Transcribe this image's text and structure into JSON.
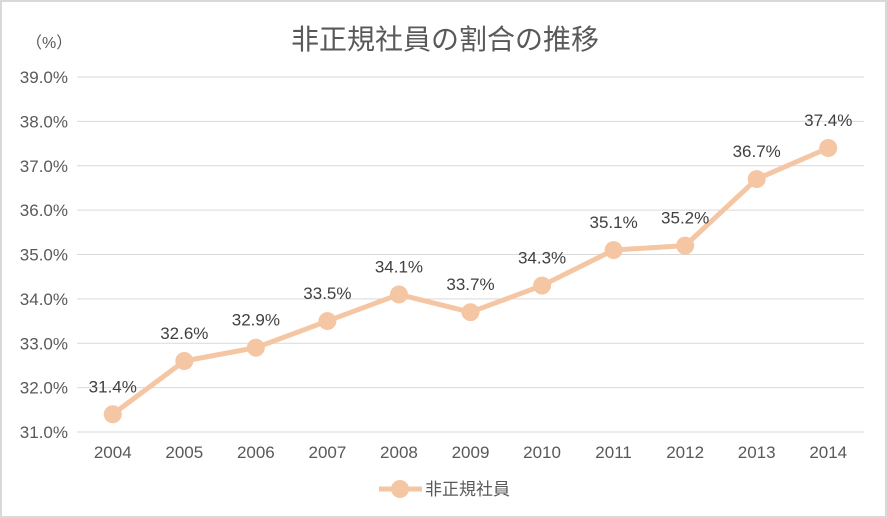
{
  "chart": {
    "title": "非正規社員の割合の推移",
    "unit_label": "（%）",
    "legend_label": "非正規社員"
  },
  "chart_data": {
    "type": "line",
    "title": "非正規社員の割合の推移",
    "unit_label": "（%）",
    "x": [
      "2004",
      "2005",
      "2006",
      "2007",
      "2008",
      "2009",
      "2010",
      "2011",
      "2012",
      "2013",
      "2014"
    ],
    "series": [
      {
        "name": "非正規社員",
        "values": [
          31.4,
          32.6,
          32.9,
          33.5,
          34.1,
          33.7,
          34.3,
          35.1,
          35.2,
          36.7,
          37.4
        ],
        "data_labels": [
          "31.4%",
          "32.6%",
          "32.9%",
          "33.5%",
          "34.1%",
          "33.7%",
          "34.3%",
          "35.1%",
          "35.2%",
          "36.7%",
          "37.4%"
        ]
      }
    ],
    "ylim": [
      31.0,
      39.0
    ],
    "ytick_step": 1.0,
    "ytick_labels": [
      "31.0%",
      "32.0%",
      "33.0%",
      "34.0%",
      "35.0%",
      "36.0%",
      "37.0%",
      "38.0%",
      "39.0%"
    ],
    "grid": true,
    "legend_position": "bottom-center",
    "marker": "circle",
    "colors": {
      "line": "#f5c6a3",
      "title": "#595959",
      "axis_text": "#595959",
      "data_label": "#404040",
      "gridline": "#d9d9d9",
      "border": "#d9d9d9",
      "background": "#ffffff"
    }
  }
}
